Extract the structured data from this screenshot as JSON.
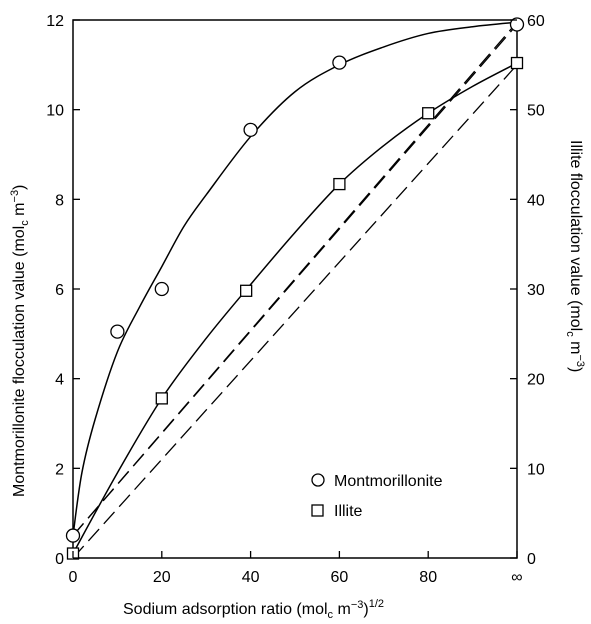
{
  "chart_data": {
    "type": "scatter",
    "x_axis": {
      "label_main": "Sodium adsorption ratio (mol",
      "label_sub": "c",
      "label_mid": " m",
      "label_sup1": "−3",
      "label_close": ")",
      "label_sup2": "1/2",
      "ticks": [
        "0",
        "20",
        "40",
        "60",
        "80",
        "∞"
      ],
      "tick_values": [
        0,
        20,
        40,
        60,
        80,
        100
      ],
      "range": [
        0,
        100
      ]
    },
    "y_left": {
      "label_main": "Montmorillonite flocculation value (mol",
      "label_sub": "c",
      "label_mid": " m",
      "label_sup": "−3",
      "label_close": ")",
      "ticks": [
        "0",
        "2",
        "4",
        "6",
        "8",
        "10",
        "12"
      ],
      "tick_values": [
        0,
        2,
        4,
        6,
        8,
        10,
        12
      ],
      "range": [
        0,
        12
      ]
    },
    "y_right": {
      "label_main": "Illite flocculation value (mol",
      "label_sub": "c",
      "label_mid": " m",
      "label_sup": "−3",
      "label_close": ")",
      "ticks": [
        "0",
        "10",
        "20",
        "30",
        "40",
        "50",
        "60"
      ],
      "tick_values": [
        0,
        10,
        20,
        30,
        40,
        50,
        60
      ],
      "range": [
        0,
        60
      ]
    },
    "series": [
      {
        "name": "Montmorillonite",
        "marker": "circle",
        "axis": "left",
        "x": [
          0,
          10,
          20,
          40,
          60,
          100
        ],
        "y": [
          0.5,
          5.05,
          6.0,
          9.55,
          11.05,
          11.9
        ]
      },
      {
        "name": "Illite",
        "marker": "square",
        "axis": "right",
        "x": [
          0,
          20,
          39,
          60,
          80,
          100
        ],
        "y": [
          0.5,
          17.8,
          29.8,
          41.7,
          49.6,
          55.2
        ]
      }
    ],
    "fit_curves": [
      {
        "series": "Montmorillonite",
        "axis": "left",
        "x": [
          0,
          2,
          5,
          10,
          15,
          20,
          25,
          30,
          40,
          50,
          60,
          70,
          80,
          90,
          100
        ],
        "y": [
          0.5,
          1.9,
          3.1,
          4.6,
          5.6,
          6.5,
          7.4,
          8.1,
          9.4,
          10.4,
          11.0,
          11.4,
          11.7,
          11.85,
          11.95
        ]
      },
      {
        "series": "Illite",
        "axis": "right",
        "x": [
          0,
          10,
          20,
          30,
          40,
          50,
          60,
          70,
          80,
          90,
          100
        ],
        "y": [
          0.5,
          9.5,
          17.8,
          24.5,
          30.5,
          36.3,
          41.7,
          46.0,
          49.6,
          52.6,
          55.2
        ]
      }
    ],
    "dashed_lines": [
      {
        "axis": "left",
        "x": [
          0,
          100
        ],
        "y": [
          0.5,
          11.95
        ]
      },
      {
        "axis": "right",
        "x": [
          0,
          100
        ],
        "y": [
          2.5,
          59.5
        ]
      },
      {
        "axis": "left",
        "x": [
          0,
          100
        ],
        "y": [
          0.0,
          11.0
        ]
      }
    ],
    "legend": {
      "position": "lower-right",
      "entries": [
        {
          "label": "Montmorillonite",
          "marker": "circle"
        },
        {
          "label": "Illite",
          "marker": "square"
        }
      ]
    },
    "grid": false
  }
}
